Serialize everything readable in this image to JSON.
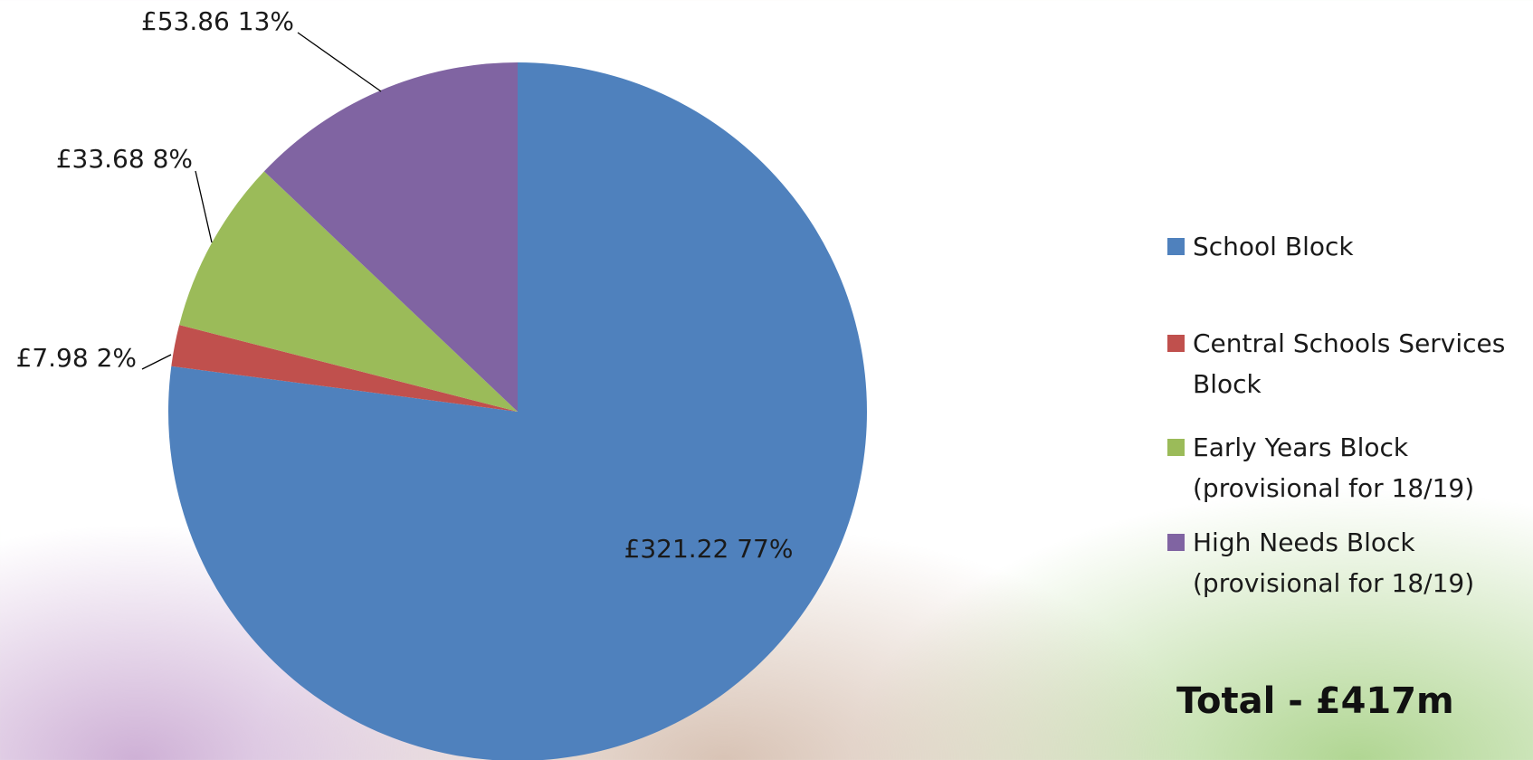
{
  "chart_data": {
    "type": "pie",
    "categories": [
      "School Block",
      "Central Schools Services Block",
      "Early Years Block (provisional for 18/19)",
      "High Needs Block (provisional for 18/19)"
    ],
    "values": [
      321.22,
      7.98,
      33.68,
      53.86
    ],
    "value_labels": [
      "£321.22  77%",
      "£7.98 2%",
      "£33.68 8%",
      "£53.86 13%"
    ],
    "colors": [
      "#4f81bd",
      "#c0504d",
      "#9bbb59",
      "#8064a2"
    ],
    "legend": "right",
    "annotation": "Total - £417m"
  }
}
